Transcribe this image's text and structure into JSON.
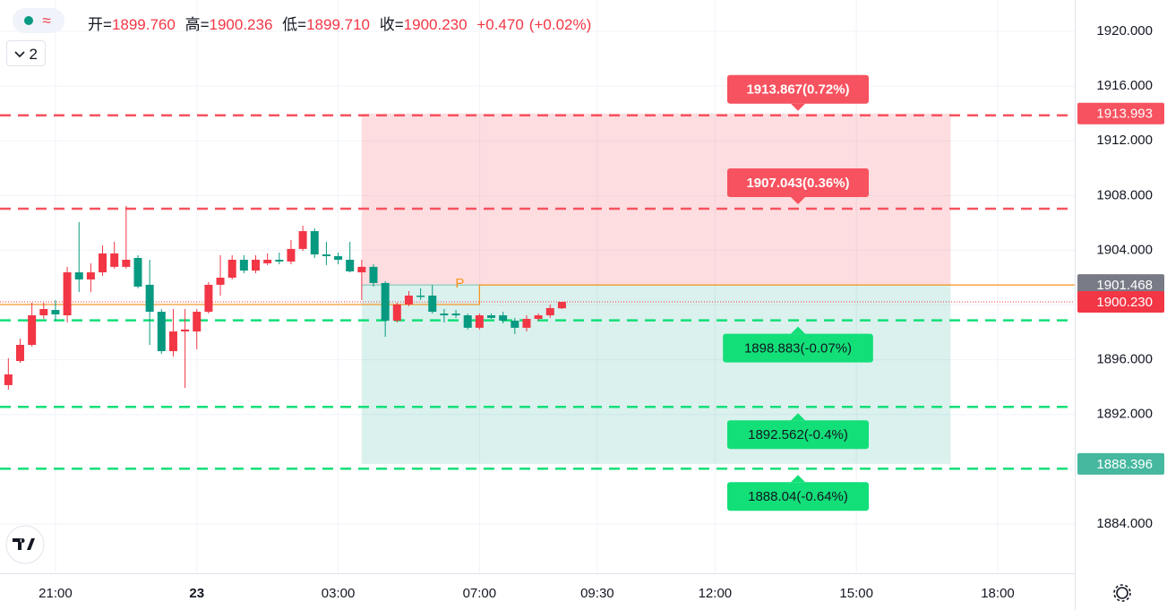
{
  "chart_data": {
    "type": "candlestick",
    "header": {
      "open_label": "开=",
      "open": "1899.760",
      "high_label": "高=",
      "high": "1900.236",
      "low_label": "低=",
      "low": "1899.710",
      "close_label": "收=",
      "close": "1900.230",
      "change": "+0.470",
      "change_pct": "(+0.02%)",
      "indicator_count": "2"
    },
    "up_color": "#f23645",
    "down_color": "#089981",
    "xlim": [
      -4.71,
      86.54
    ],
    "ylim": [
      1880.4,
      1922.29
    ],
    "xticks": [
      {
        "value": 0,
        "label": "21:00"
      },
      {
        "value": 12,
        "label": "23"
      },
      {
        "value": 24,
        "label": "03:00"
      },
      {
        "value": 36,
        "label": "07:00"
      },
      {
        "value": 46,
        "label": "09:30"
      },
      {
        "value": 56,
        "label": "12:00"
      },
      {
        "value": 68,
        "label": "15:00"
      },
      {
        "value": 80,
        "label": "18:00"
      }
    ],
    "yticks": [
      {
        "value": 1920,
        "label": "1920.000"
      },
      {
        "value": 1916,
        "label": "1916.000"
      },
      {
        "value": 1912,
        "label": "1912.000"
      },
      {
        "value": 1908,
        "label": "1908.000"
      },
      {
        "value": 1904,
        "label": "1904.000"
      },
      {
        "value": 1900,
        "label": "1900.000"
      },
      {
        "value": 1896,
        "label": "1896.000"
      },
      {
        "value": 1892,
        "label": "1892.000"
      },
      {
        "value": 1888,
        "label": "1888.000"
      },
      {
        "value": 1884,
        "label": "1884.000"
      }
    ],
    "grid": true,
    "candles": {
      "x": [
        -4,
        -3,
        -2,
        -1,
        0,
        1,
        2,
        3,
        4,
        5,
        6,
        7,
        8,
        9,
        10,
        11,
        12,
        13,
        14,
        15,
        16,
        17,
        18,
        19,
        20,
        21,
        22,
        23,
        24,
        25,
        26,
        27,
        28,
        29,
        30,
        31,
        32,
        33,
        34,
        35,
        36,
        37,
        38,
        39,
        40,
        41,
        42,
        43
      ],
      "open": [
        1894.15,
        1895.91,
        1897.09,
        1899.25,
        1899.64,
        1899.25,
        1902.39,
        1901.87,
        1902.39,
        1902.79,
        1902.79,
        1903.44,
        1901.48,
        1899.51,
        1896.63,
        1898.07,
        1898.07,
        1899.51,
        1901.48,
        1902.0,
        1903.31,
        1902.52,
        1903.05,
        1903.31,
        1903.18,
        1904.1,
        1905.4,
        1903.7,
        1903.57,
        1903.31,
        1902.39,
        1902.79,
        1901.61,
        1898.86,
        1900.04,
        1900.69,
        1900.69,
        1899.38,
        1899.38,
        1899.25,
        1898.34,
        1899.25,
        1899.25,
        1898.86,
        1898.34,
        1898.99,
        1899.25,
        1899.76
      ],
      "high": [
        1896.11,
        1897.55,
        1900.17,
        1900.17,
        1900.37,
        1902.79,
        1906.06,
        1903.05,
        1904.36,
        1904.62,
        1907.24,
        1903.64,
        1903.31,
        1899.71,
        1899.71,
        1899.71,
        1899.71,
        1901.67,
        1903.64,
        1903.64,
        1903.64,
        1903.64,
        1903.77,
        1903.83,
        1904.75,
        1905.8,
        1905.6,
        1904.62,
        1903.83,
        1904.62,
        1903.31,
        1902.98,
        1901.74,
        1900.17,
        1901.02,
        1901.22,
        1901.48,
        1899.71,
        1899.64,
        1899.38,
        1899.38,
        1899.38,
        1899.51,
        1899.06,
        1899.25,
        1899.38,
        1900.04,
        1900.236
      ],
      "low": [
        1893.82,
        1895.78,
        1896.96,
        1898.99,
        1898.86,
        1898.73,
        1900.95,
        1900.95,
        1902.13,
        1902.66,
        1902.66,
        1901.22,
        1897.09,
        1896.44,
        1896.24,
        1893.95,
        1896.77,
        1899.38,
        1900.69,
        1901.87,
        1902.33,
        1902.33,
        1902.92,
        1902.98,
        1902.98,
        1903.96,
        1903.44,
        1902.92,
        1902.98,
        1902.39,
        1900.37,
        1901.35,
        1897.68,
        1898.73,
        1899.91,
        1900.37,
        1899.38,
        1898.73,
        1899.06,
        1898.21,
        1898.21,
        1898.99,
        1898.66,
        1897.88,
        1898.07,
        1898.86,
        1899.06,
        1899.71
      ],
      "close": [
        1894.93,
        1897.09,
        1899.25,
        1899.71,
        1899.32,
        1902.39,
        1901.87,
        1902.39,
        1903.77,
        1903.77,
        1903.31,
        1901.35,
        1899.51,
        1896.63,
        1898.07,
        1898.21,
        1899.51,
        1901.48,
        1902.0,
        1903.31,
        1902.52,
        1903.31,
        1903.31,
        1903.18,
        1904.1,
        1905.4,
        1903.7,
        1903.57,
        1903.31,
        1902.46,
        1902.79,
        1901.61,
        1898.86,
        1900.04,
        1900.69,
        1900.69,
        1899.51,
        1899.25,
        1899.25,
        1898.34,
        1899.25,
        1899.06,
        1898.86,
        1898.34,
        1898.99,
        1899.25,
        1899.78,
        1900.23
      ]
    },
    "position": {
      "start": 26,
      "end": 76,
      "top": 1913.993,
      "entry": 1901.468,
      "bottom": 1888.396,
      "profit_color": "#f23645",
      "loss_color": "#22ab94"
    },
    "levels": [
      {
        "value": 1913.867,
        "label": "1913.867(0.72%)",
        "color": "#f7525f"
      },
      {
        "value": 1907.043,
        "label": "1907.043(0.36%)",
        "color": "#f7525f"
      },
      {
        "value": 1898.883,
        "label": "1898.883(-0.07%)",
        "color": "#12df78"
      },
      {
        "value": 1892.562,
        "label": "1892.562(-0.4%)",
        "color": "#12df78"
      },
      {
        "value": 1888.04,
        "label": "1888.04(-0.64%)",
        "color": "#12df78"
      }
    ],
    "price_labels": [
      {
        "value": 1913.993,
        "label": "1913.993",
        "color": "#f7525f"
      },
      {
        "value": 1901.468,
        "label": "1901.468",
        "color": "#787b86"
      },
      {
        "value": 1900.23,
        "label": "1900.230",
        "color": "#f23645",
        "dotted": true
      },
      {
        "value": 1888.396,
        "label": "1888.396",
        "color": "#45b89f"
      }
    ],
    "pivot": {
      "label": "P",
      "color": "#f7931a",
      "x": [
        -4.71,
        36,
        36,
        86.54
      ],
      "values": [
        1900.04,
        1900.04,
        1901.468,
        1901.468
      ]
    }
  }
}
